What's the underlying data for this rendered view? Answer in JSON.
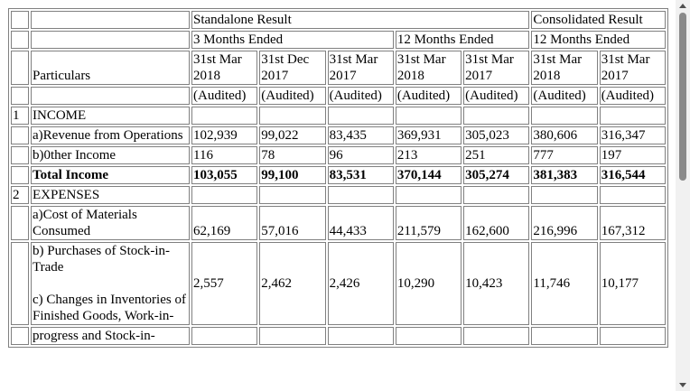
{
  "header": {
    "groups": [
      "Standalone Result",
      "Consolidated Result"
    ],
    "periods": [
      "3 Months Ended",
      "12 Months Ended",
      "12 Months Ended"
    ],
    "particulars": "Particulars",
    "dates": [
      "31st Mar 2018",
      "31st Dec 2017",
      "31st Mar 2017",
      "31st Mar 2018",
      "31st Mar 2017",
      "31st Mar 2018",
      "31st Mar 2017"
    ],
    "audit": [
      "(Audited)",
      "(Audited)",
      "(Audited)",
      "(Audited)",
      "(Audited)",
      "(Audited)",
      "(Audited)"
    ]
  },
  "items": [
    {
      "no": "1",
      "label": "INCOME"
    },
    {
      "label": "a)Revenue from Operations",
      "values": [
        "102,939",
        "99,022",
        "83,435",
        "369,931",
        "305,023",
        "380,606",
        "316,347"
      ]
    },
    {
      "label": "b)0ther Income",
      "values": [
        "116",
        "78",
        "96",
        "213",
        "251",
        "777",
        "197"
      ]
    },
    {
      "label": "Total Income",
      "bold": true,
      "values": [
        "103,055",
        "99,100",
        "83,531",
        "370,144",
        "305,274",
        "381,383",
        "316,544"
      ]
    },
    {
      "no": "2",
      "label": "EXPENSES"
    },
    {
      "label": "a)Cost of Materials Consumed",
      "values": [
        "62,169",
        "57,016",
        "44,433",
        "211,579",
        "162,600",
        "216,996",
        "167,312"
      ]
    },
    {
      "label": [
        "b) Purchases of Stock-in-Trade",
        "c) Changes in Inventories of Finished Goods, Work-in-"
      ],
      "values": [
        "2,557",
        "2,462",
        "2,426",
        "10,290",
        "10,423",
        "11,746",
        "10,177"
      ]
    },
    {
      "label": "progress and Stock-in-"
    }
  ]
}
